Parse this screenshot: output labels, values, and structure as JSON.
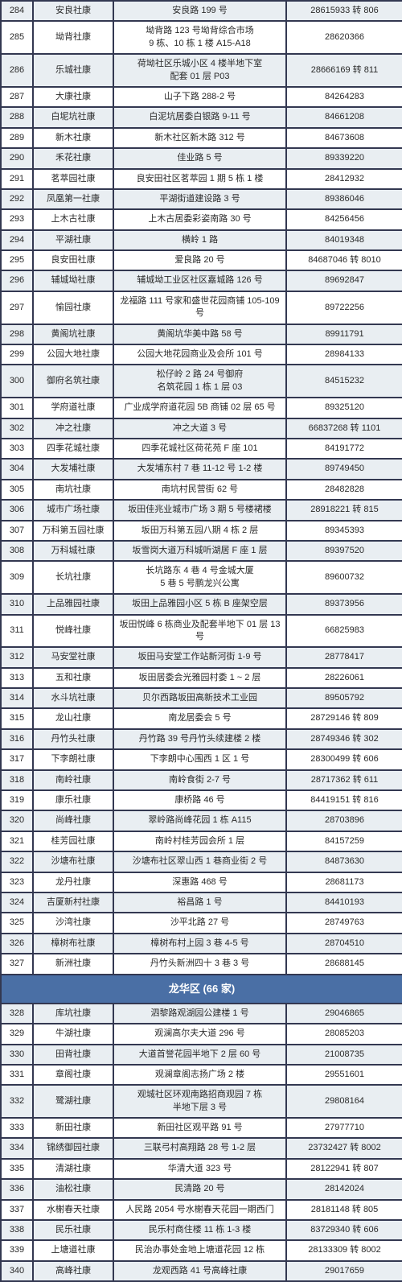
{
  "colors": {
    "border": "#333851",
    "stripe_bg": "#e9eef2",
    "plain_bg": "#ffffff",
    "section_bg": "#4a6fa5",
    "section_text": "#ffffff",
    "text": "#2a2a2a"
  },
  "typography": {
    "cell_fontsize": 11,
    "section_fontsize": 13,
    "font_family": "Microsoft YaHei"
  },
  "column_widths": {
    "num": 40,
    "name": 100,
    "addr": 215,
    "phone": 145
  },
  "rows": [
    {
      "type": "data",
      "num": "284",
      "name": "安良社康",
      "addr": "安良路 199 号",
      "phone": "28615933 转 806"
    },
    {
      "type": "data",
      "num": "285",
      "name": "坳背社康",
      "addr": "坳背路 123 号坳背综合市场\n9 栋、10 栋 1 楼 A15-A18",
      "phone": "28620366"
    },
    {
      "type": "data",
      "num": "286",
      "name": "乐城社康",
      "addr": "荷坳社区乐城小区 4 楼半地下室\n配套 01 层 P03",
      "phone": "28666169 转 811"
    },
    {
      "type": "data",
      "num": "287",
      "name": "大康社康",
      "addr": "山子下路 288-2 号",
      "phone": "84264283"
    },
    {
      "type": "data",
      "num": "288",
      "name": "白坭坑社康",
      "addr": "白泥坑居委白银路 9-11 号",
      "phone": "84661208"
    },
    {
      "type": "data",
      "num": "289",
      "name": "新木社康",
      "addr": "新木社区新木路 312 号",
      "phone": "84673608"
    },
    {
      "type": "data",
      "num": "290",
      "name": "禾花社康",
      "addr": "佳业路 5 号",
      "phone": "89339220"
    },
    {
      "type": "data",
      "num": "291",
      "name": "茗萃园社康",
      "addr": "良安田社区茗萃园 1 期 5 栋 1 楼",
      "phone": "28412932"
    },
    {
      "type": "data",
      "num": "292",
      "name": "凤凰第一社康",
      "addr": "平湖街道建设路 3 号",
      "phone": "89386046"
    },
    {
      "type": "data",
      "num": "293",
      "name": "上木古社康",
      "addr": "上木古居委彩姿南路 30 号",
      "phone": "84256456"
    },
    {
      "type": "data",
      "num": "294",
      "name": "平湖社康",
      "addr": "横岭 1 路",
      "phone": "84019348"
    },
    {
      "type": "data",
      "num": "295",
      "name": "良安田社康",
      "addr": "爱良路 20 号",
      "phone": "84687046 转 8010"
    },
    {
      "type": "data",
      "num": "296",
      "name": "辅城坳社康",
      "addr": "辅城坳工业区社区嘉城路 126 号",
      "phone": "89692847"
    },
    {
      "type": "data",
      "num": "297",
      "name": "愉园社康",
      "addr": "龙福路 111 号家和盛世花园商铺 105-109 号",
      "phone": "89722256"
    },
    {
      "type": "data",
      "num": "298",
      "name": "黄阁坑社康",
      "addr": "黄阁坑华美中路 58 号",
      "phone": "89911791"
    },
    {
      "type": "data",
      "num": "299",
      "name": "公园大地社康",
      "addr": "公园大地花园商业及会所 101 号",
      "phone": "28984133"
    },
    {
      "type": "data",
      "num": "300",
      "name": "御府名筑社康",
      "addr": "松仔岭 2 路 24 号御府\n名筑花园 1 栋 1 层 03",
      "phone": "84515232"
    },
    {
      "type": "data",
      "num": "301",
      "name": "学府道社康",
      "addr": "广业成学府道花园 5B 商铺 02 层 65 号",
      "phone": "89325120"
    },
    {
      "type": "data",
      "num": "302",
      "name": "冲之社康",
      "addr": "冲之大道 3 号",
      "phone": "66837268 转 1101"
    },
    {
      "type": "data",
      "num": "303",
      "name": "四季花城社康",
      "addr": "四季花城社区荷花苑 F 座 101",
      "phone": "84191772"
    },
    {
      "type": "data",
      "num": "304",
      "name": "大发埔社康",
      "addr": "大发埔东村 7 巷 11-12 号 1-2 楼",
      "phone": "89749450"
    },
    {
      "type": "data",
      "num": "305",
      "name": "南坑社康",
      "addr": "南坑村民营街 62 号",
      "phone": "28482828"
    },
    {
      "type": "data",
      "num": "306",
      "name": "城市广场社康",
      "addr": "坂田佳兆业城市广场 3 期 5 号楼裙楼",
      "phone": "28918221 转 815"
    },
    {
      "type": "data",
      "num": "307",
      "name": "万科第五园社康",
      "addr": "坂田万科第五园八期 4 栋 2 层",
      "phone": "89345393"
    },
    {
      "type": "data",
      "num": "308",
      "name": "万科城社康",
      "addr": "坂雪岗大道万科城听湖居 F 座 1 层",
      "phone": "89397520"
    },
    {
      "type": "data",
      "num": "309",
      "name": "长坑社康",
      "addr": "长坑路东 4 巷 4 号金城大厦\n5 巷 5 号鹏龙兴公寓",
      "phone": "89600732"
    },
    {
      "type": "data",
      "num": "310",
      "name": "上品雅园社康",
      "addr": "坂田上品雅园小区 5 栋 B 座架空层",
      "phone": "89373956"
    },
    {
      "type": "data",
      "num": "311",
      "name": "悦峰社康",
      "addr": "坂田悦峰 6 栋商业及配套半地下 01 层 13 号",
      "phone": "66825983"
    },
    {
      "type": "data",
      "num": "312",
      "name": "马安堂社康",
      "addr": "坂田马安堂工作站新河街 1-9 号",
      "phone": "28778417"
    },
    {
      "type": "data",
      "num": "313",
      "name": "五和社康",
      "addr": "坂田居委会光雅园村委 1 ~ 2 层",
      "phone": "28226061"
    },
    {
      "type": "data",
      "num": "314",
      "name": "水斗坑社康",
      "addr": "贝尔西路坂田高新技术工业园",
      "phone": "89505792"
    },
    {
      "type": "data",
      "num": "315",
      "name": "龙山社康",
      "addr": "南龙居委会 5 号",
      "phone": "28729146 转 809"
    },
    {
      "type": "data",
      "num": "316",
      "name": "丹竹头社康",
      "addr": "丹竹路 39 号丹竹头续建楼 2 楼",
      "phone": "28749346 转 302"
    },
    {
      "type": "data",
      "num": "317",
      "name": "下李朗社康",
      "addr": "下李朗中心围西 1 区 1 号",
      "phone": "28300499 转 606"
    },
    {
      "type": "data",
      "num": "318",
      "name": "南岭社康",
      "addr": "南岭食街 2-7 号",
      "phone": "28717362 转 611"
    },
    {
      "type": "data",
      "num": "319",
      "name": "康乐社康",
      "addr": "康桥路 46 号",
      "phone": "84419151 转 816"
    },
    {
      "type": "data",
      "num": "320",
      "name": "尚峰社康",
      "addr": "翠岭路尚峰花园 1 栋 A115",
      "phone": "28703896"
    },
    {
      "type": "data",
      "num": "321",
      "name": "桂芳园社康",
      "addr": "南岭村桂芳园会所 1 层",
      "phone": "84157259"
    },
    {
      "type": "data",
      "num": "322",
      "name": "沙塘布社康",
      "addr": "沙塘布社区翠山西 1 巷商业街 2 号",
      "phone": "84873630"
    },
    {
      "type": "data",
      "num": "323",
      "name": "龙丹社康",
      "addr": "深惠路 468 号",
      "phone": "28681173"
    },
    {
      "type": "data",
      "num": "324",
      "name": "吉厦新村社康",
      "addr": "裕昌路 1 号",
      "phone": "84410193"
    },
    {
      "type": "data",
      "num": "325",
      "name": "沙湾社康",
      "addr": "沙平北路 27 号",
      "phone": "28749763"
    },
    {
      "type": "data",
      "num": "326",
      "name": "樟树布社康",
      "addr": "樟树布村上园 3 巷 4-5 号",
      "phone": "28704510"
    },
    {
      "type": "data",
      "num": "327",
      "name": "新洲社康",
      "addr": "丹竹头新洲四十 3 巷 3 号",
      "phone": "28688145"
    },
    {
      "type": "section",
      "label": "龙华区 (66 家)"
    },
    {
      "type": "data",
      "num": "328",
      "name": "库坑社康",
      "addr": "泗黎路观湖园公建楼 1 号",
      "phone": "29046865"
    },
    {
      "type": "data",
      "num": "329",
      "name": "牛湖社康",
      "addr": "观澜高尔夫大道 296 号",
      "phone": "28085203"
    },
    {
      "type": "data",
      "num": "330",
      "name": "田背社康",
      "addr": "大道首誉花园半地下 2 层 60 号",
      "phone": "21008735"
    },
    {
      "type": "data",
      "num": "331",
      "name": "章阁社康",
      "addr": "观澜章阁志扬广场 2 楼",
      "phone": "29551601"
    },
    {
      "type": "data",
      "num": "332",
      "name": "鹭湖社康",
      "addr": "观城社区环观南路招商观园 7 栋\n半地下层 3 号",
      "phone": "29808164"
    },
    {
      "type": "data",
      "num": "333",
      "name": "新田社康",
      "addr": "新田社区观平路 91 号",
      "phone": "27977710"
    },
    {
      "type": "data",
      "num": "334",
      "name": "锦绣御园社康",
      "addr": "三联弓村高翔路 28 号 1-2 层",
      "phone": "23732427 转 8002"
    },
    {
      "type": "data",
      "num": "335",
      "name": "清湖社康",
      "addr": "华清大道 323 号",
      "phone": "28122941 转 807"
    },
    {
      "type": "data",
      "num": "336",
      "name": "油松社康",
      "addr": "民清路 20 号",
      "phone": "28142024"
    },
    {
      "type": "data",
      "num": "337",
      "name": "水榭春天社康",
      "addr": "人民路 2054 号水榭春天花园一期西门",
      "phone": "28181148 转 805"
    },
    {
      "type": "data",
      "num": "338",
      "name": "民乐社康",
      "addr": "民乐村商住楼 11 栋 1-3 楼",
      "phone": "83729340 转 606"
    },
    {
      "type": "data",
      "num": "339",
      "name": "上塘道社康",
      "addr": "民治办事处金地上塘道花园 12 栋",
      "phone": "28133309 转 8002"
    },
    {
      "type": "data",
      "num": "340",
      "name": "高峰社康",
      "addr": "龙观西路 41 号高峰社康",
      "phone": "29017659"
    }
  ]
}
